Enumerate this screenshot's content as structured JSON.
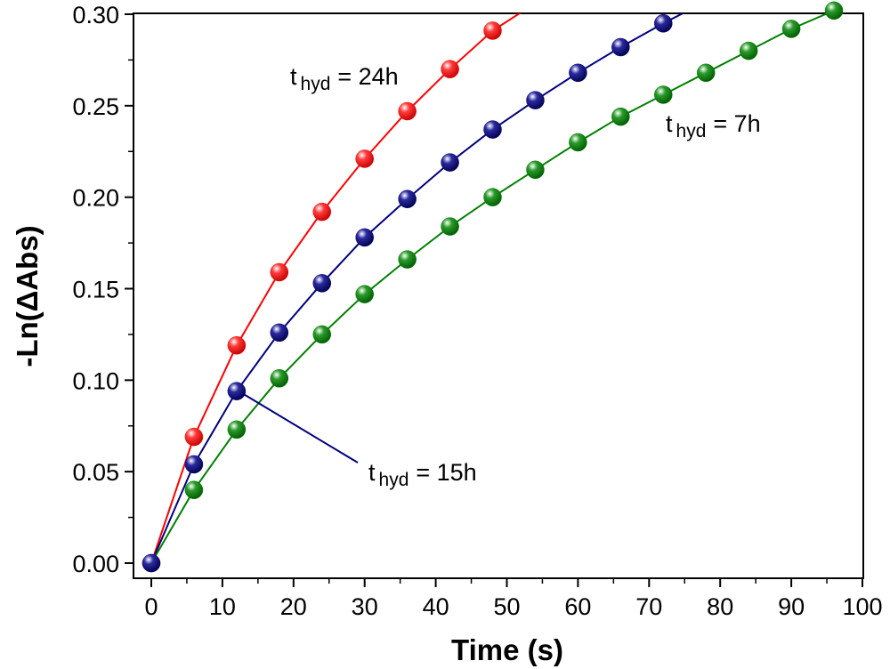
{
  "chart_data": {
    "type": "scatter",
    "xlabel": "Time (s)",
    "ylabel": "-Ln(ΔAbs)",
    "xlim": [
      0,
      100
    ],
    "ylim": [
      0,
      0.3
    ],
    "x_ticks": [
      "0",
      "10",
      "20",
      "30",
      "40",
      "50",
      "60",
      "70",
      "80",
      "90",
      "100"
    ],
    "y_ticks": [
      "0.00",
      "0.05",
      "0.10",
      "0.15",
      "0.20",
      "0.25",
      "0.30"
    ],
    "grid": false,
    "legend": "none",
    "series": [
      {
        "name": "t hyd = 24h",
        "color": "#ff0000",
        "x": [
          0,
          6,
          12,
          18,
          24,
          30,
          36,
          42,
          48
        ],
        "y": [
          0.0,
          0.069,
          0.119,
          0.159,
          0.192,
          0.221,
          0.247,
          0.27,
          0.291
        ],
        "fit_end": [
          52,
          0.301
        ]
      },
      {
        "name": "t hyd = 15h",
        "color": "#000080",
        "x": [
          0,
          6,
          12,
          18,
          24,
          30,
          36,
          42,
          48,
          54,
          60,
          66,
          72
        ],
        "y": [
          0.0,
          0.054,
          0.094,
          0.126,
          0.153,
          0.178,
          0.199,
          0.219,
          0.237,
          0.253,
          0.268,
          0.282,
          0.295
        ],
        "fit_end": [
          75,
          0.301
        ]
      },
      {
        "name": "t hyd = 7h",
        "color": "#008000",
        "x": [
          6,
          12,
          18,
          24,
          30,
          36,
          42,
          48,
          54,
          60,
          66,
          72,
          78,
          84,
          90,
          96
        ],
        "y": [
          0.04,
          0.073,
          0.101,
          0.125,
          0.147,
          0.166,
          0.184,
          0.2,
          0.215,
          0.23,
          0.244,
          0.256,
          0.268,
          0.28,
          0.292,
          0.302
        ],
        "fit_start": [
          0,
          0.0
        ]
      }
    ],
    "annotations": [
      {
        "t": "t",
        "sub": "hyd",
        "rest": "= 24h",
        "color": "#ff0000"
      },
      {
        "t": "t",
        "sub": "hyd",
        "rest": "= 15h",
        "color": "#000080"
      },
      {
        "t": "t",
        "sub": "hyd",
        "rest": "= 7h",
        "color": "#008000"
      }
    ]
  }
}
